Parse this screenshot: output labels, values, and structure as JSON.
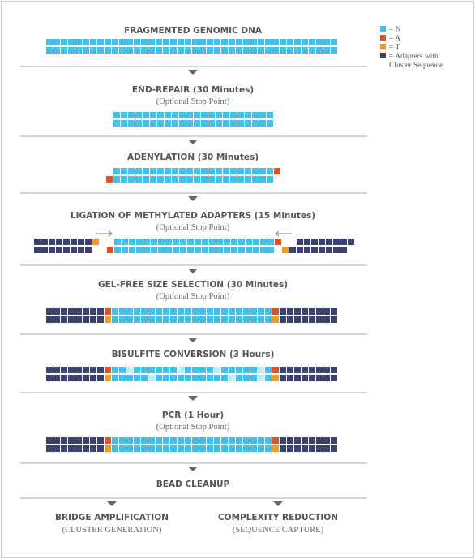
{
  "legend": [
    "= N",
    "= A",
    "= T",
    "= Adapters with",
    "Cluster Sequence"
  ],
  "steps": [
    {
      "title": "FRAGMENTED GENOMIC DNA"
    },
    {
      "title": "END-REPAIR (30 Minutes)",
      "subtitle": "(Optional Stop Point)"
    },
    {
      "title": "ADENYLATION (30 Minutes)"
    },
    {
      "title": "LIGATION OF METHYLATED ADAPTERS (15 Minutes)",
      "subtitle": "(Optional Stop Point)"
    },
    {
      "title": "GEL-FREE SIZE SELECTION (30 Minutes)",
      "subtitle": "(Optional Stop Point)"
    },
    {
      "title": "BISULFITE CONVERSION (3 Hours)"
    },
    {
      "title": "PCR (1 Hour)",
      "subtitle": "(Optional Stop Point)"
    },
    {
      "title": "BEAD CLEANUP"
    }
  ],
  "branches": [
    {
      "title": "BRIDGE AMPLIFICATION",
      "subtitle": "(CLUSTER GENERATION)"
    },
    {
      "title": "COMPLEXITY REDUCTION",
      "subtitle": "(SEQUENCE CAPTURE)"
    }
  ]
}
